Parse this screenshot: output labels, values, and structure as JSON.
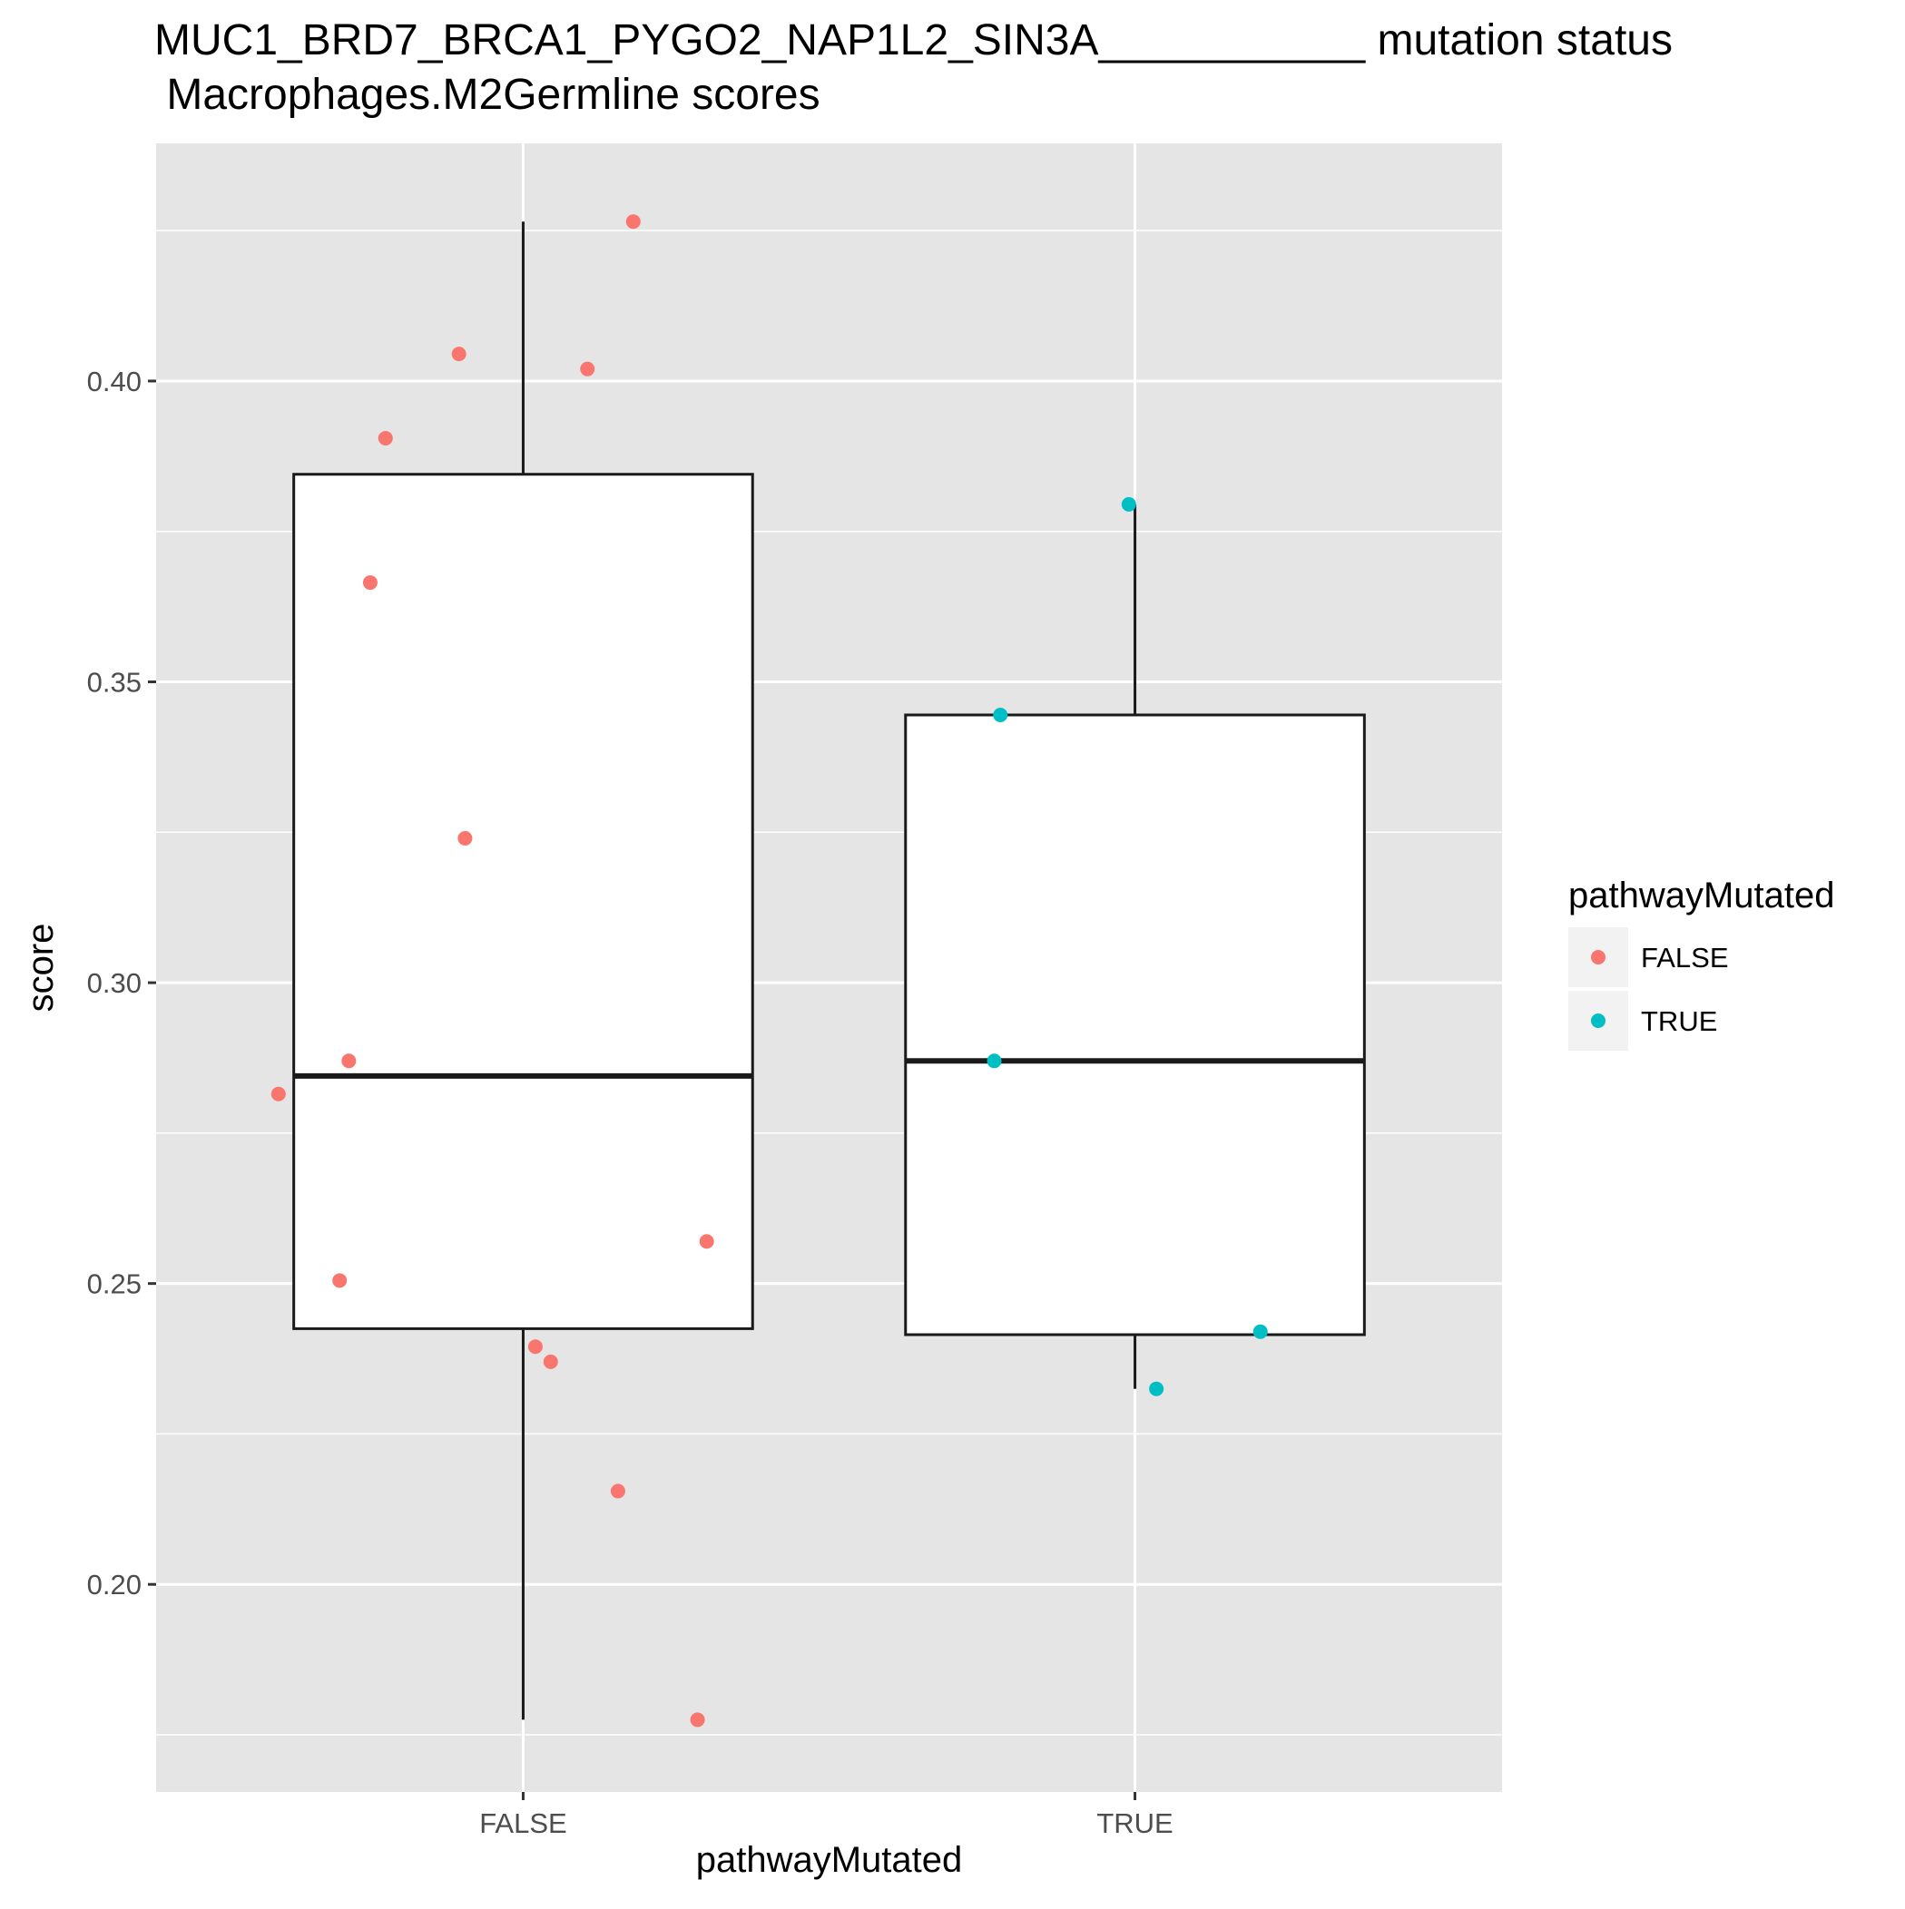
{
  "chart_data": {
    "type": "box+jitter",
    "title": "MUC1_BRD7_BRCA1_PYGO2_NAP1L2_SIN3A___________ mutation status",
    "subtitle": " Macrophages.M2Germline scores",
    "xlabel": "pathwayMutated",
    "ylabel": "score",
    "categories": [
      "FALSE",
      "TRUE"
    ],
    "ylim": [
      0.1655,
      0.4395
    ],
    "y_ticks": [
      0.2,
      0.25,
      0.3,
      0.35,
      0.4
    ],
    "y_tick_labels": [
      "0.20",
      "0.25",
      "0.30",
      "0.35",
      "0.40"
    ],
    "grid": true,
    "legend": {
      "title": "pathwayMutated",
      "position": "right",
      "entries": [
        {
          "label": "FALSE",
          "color": "#F8766D"
        },
        {
          "label": "TRUE",
          "color": "#00BFC4"
        }
      ]
    },
    "boxes": [
      {
        "category": "FALSE",
        "whisker_low": 0.1775,
        "q1": 0.2425,
        "median": 0.2845,
        "q3": 0.3845,
        "whisker_high": 0.4265
      },
      {
        "category": "TRUE",
        "whisker_low": 0.2325,
        "q1": 0.2415,
        "median": 0.287,
        "q3": 0.3445,
        "whisker_high": 0.3795
      }
    ],
    "series": [
      {
        "category": "FALSE",
        "color": "#F8766D",
        "points": [
          {
            "x": 0.6,
            "y": 0.2815
          },
          {
            "x": 0.7,
            "y": 0.2505
          },
          {
            "x": 0.715,
            "y": 0.287
          },
          {
            "x": 0.75,
            "y": 0.3665
          },
          {
            "x": 0.775,
            "y": 0.3905
          },
          {
            "x": 0.895,
            "y": 0.4045
          },
          {
            "x": 0.905,
            "y": 0.324
          },
          {
            "x": 1.02,
            "y": 0.2395
          },
          {
            "x": 1.045,
            "y": 0.237
          },
          {
            "x": 1.105,
            "y": 0.402
          },
          {
            "x": 1.155,
            "y": 0.2155
          },
          {
            "x": 1.18,
            "y": 0.4265
          },
          {
            "x": 1.285,
            "y": 0.1775
          },
          {
            "x": 1.3,
            "y": 0.257
          }
        ]
      },
      {
        "category": "TRUE",
        "color": "#00BFC4",
        "points": [
          {
            "x": 1.77,
            "y": 0.287
          },
          {
            "x": 1.78,
            "y": 0.3445
          },
          {
            "x": 1.99,
            "y": 0.3795
          },
          {
            "x": 2.035,
            "y": 0.2325
          },
          {
            "x": 2.205,
            "y": 0.242
          }
        ]
      }
    ],
    "colors": {
      "panel_background": "#E5E5E5",
      "grid": "#FFFFFF",
      "box_fill": "#FFFFFF",
      "box_stroke": "#1A1A1A"
    }
  }
}
